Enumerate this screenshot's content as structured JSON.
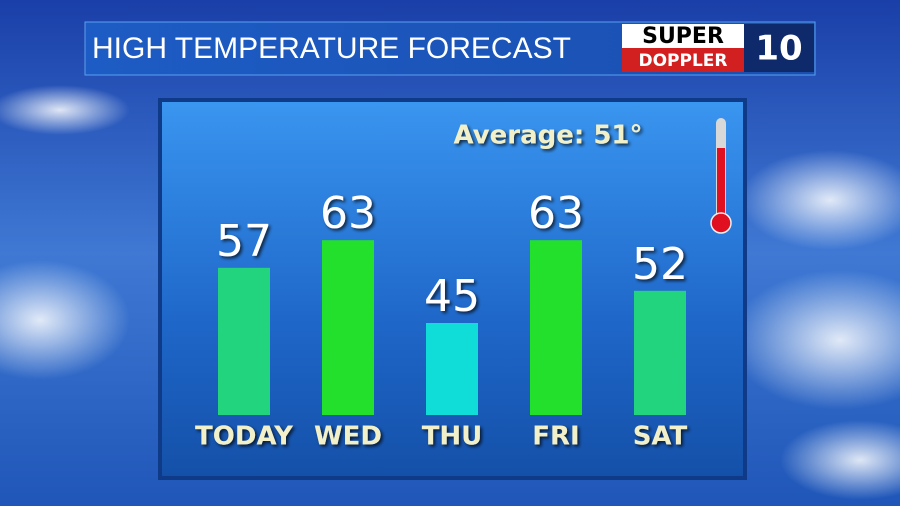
{
  "chart_data": {
    "type": "bar",
    "title": "HIGH TEMPERATURE FORECAST",
    "annotation": "Average: 51°",
    "categories": [
      "TODAY",
      "WED",
      "THU",
      "FRI",
      "SAT"
    ],
    "values": [
      57,
      63,
      45,
      63,
      52
    ],
    "colors": [
      "#22d47e",
      "#22e02c",
      "#10dcd8",
      "#22e02c",
      "#22d47e"
    ],
    "ylim": [
      25,
      70
    ]
  },
  "logo": {
    "top": "SUPER",
    "bottom": "DOPPLER",
    "channel": "10"
  }
}
